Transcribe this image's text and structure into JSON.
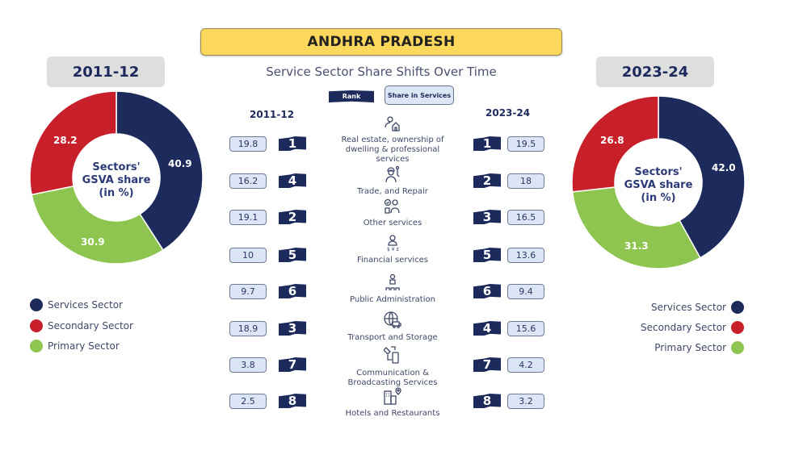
{
  "header": {
    "title": "ANDHRA PRADESH",
    "subtitle": "Service Sector Share Shifts Over Time",
    "legend_rank": "Rank",
    "legend_share": "Share in Services"
  },
  "left_panel": {
    "year": "2011-12",
    "center_label": [
      "Sectors'",
      "GSVA share",
      "(in %)"
    ],
    "slices": [
      {
        "name": "Services Sector",
        "value": 40.9,
        "label": "40.9",
        "color": "#1d2a5c"
      },
      {
        "name": "Primary Sector",
        "value": 30.9,
        "label": "30.9",
        "color": "#8dc550"
      },
      {
        "name": "Secondary Sector",
        "value": 28.2,
        "label": "28.2",
        "color": "#c8202a"
      }
    ],
    "legend": [
      {
        "label": "Services Sector",
        "color": "#1d2a5c"
      },
      {
        "label": "Secondary Sector",
        "color": "#c8202a"
      },
      {
        "label": "Primary Sector",
        "color": "#8dc550"
      }
    ]
  },
  "right_panel": {
    "year": "2023-24",
    "center_label": [
      "Sectors'",
      "GSVA share",
      "(in %)"
    ],
    "slices": [
      {
        "name": "Services Sector",
        "value": 42.0,
        "label": "42.0",
        "color": "#1d2a5c"
      },
      {
        "name": "Primary Sector",
        "value": 31.3,
        "label": "31.3",
        "color": "#8dc550"
      },
      {
        "name": "Secondary Sector",
        "value": 26.8,
        "label": "26.8",
        "color": "#c8202a"
      }
    ],
    "legend": [
      {
        "label": "Services Sector",
        "color": "#1d2a5c"
      },
      {
        "label": "Secondary Sector",
        "color": "#c8202a"
      },
      {
        "label": "Primary Sector",
        "color": "#8dc550"
      }
    ]
  },
  "table": {
    "col_left": "2011-12",
    "col_right": "2023-24",
    "rows": [
      {
        "category": "Real estate, ownership of dwelling & professional services",
        "lines": [
          "Real estate, ownership of",
          "dwelling & professional",
          "services"
        ],
        "icon": "person-house-icon",
        "share_2011": "19.8",
        "rank_2011": "1",
        "rank_2023": "1",
        "share_2023": "19.5"
      },
      {
        "category": "Trade, and Repair",
        "lines": [
          "Trade, and Repair"
        ],
        "icon": "worker-wrench-icon",
        "share_2011": "16.2",
        "rank_2011": "4",
        "rank_2023": "2",
        "share_2023": "18"
      },
      {
        "category": "Other services",
        "lines": [
          "Other services"
        ],
        "icon": "service-person-icon",
        "share_2011": "19.1",
        "rank_2011": "2",
        "rank_2023": "3",
        "share_2023": "16.5"
      },
      {
        "category": "Financial services",
        "lines": [
          "Financial services"
        ],
        "icon": "finance-person-icon",
        "share_2011": "10",
        "rank_2011": "5",
        "rank_2023": "5",
        "share_2023": "13.6"
      },
      {
        "category": "Public Administration",
        "lines": [
          "Public Administration"
        ],
        "icon": "administration-icon",
        "share_2011": "9.7",
        "rank_2011": "6",
        "rank_2023": "6",
        "share_2023": "9.4"
      },
      {
        "category": "Transport and Storage",
        "lines": [
          "Transport and Storage"
        ],
        "icon": "globe-truck-icon",
        "share_2011": "18.9",
        "rank_2011": "3",
        "rank_2023": "4",
        "share_2023": "15.6"
      },
      {
        "category": "Communication & Broadcasting Services",
        "lines": [
          "Communication &",
          "Broadcasting Services"
        ],
        "icon": "satellite-phone-icon",
        "share_2011": "3.8",
        "rank_2011": "7",
        "rank_2023": "7",
        "share_2023": "4.2"
      },
      {
        "category": "Hotels and Restaurants",
        "lines": [
          "Hotels and Restaurants"
        ],
        "icon": "hotel-location-icon",
        "share_2011": "2.5",
        "rank_2011": "8",
        "rank_2023": "8",
        "share_2023": "3.2"
      }
    ]
  },
  "chart_data": [
    {
      "type": "pie",
      "title": "Sectors' GSVA share (in %) — 2011-12",
      "categories": [
        "Services Sector",
        "Primary Sector",
        "Secondary Sector"
      ],
      "values": [
        40.9,
        30.9,
        28.2
      ],
      "colors": [
        "#1d2a5c",
        "#8dc550",
        "#c8202a"
      ],
      "donut": true,
      "legend_position": "below-left"
    },
    {
      "type": "pie",
      "title": "Sectors' GSVA share (in %) — 2023-24",
      "categories": [
        "Services Sector",
        "Primary Sector",
        "Secondary Sector"
      ],
      "values": [
        42.0,
        31.3,
        26.8
      ],
      "colors": [
        "#1d2a5c",
        "#8dc550",
        "#c8202a"
      ],
      "donut": true,
      "legend_position": "below-right"
    },
    {
      "type": "table",
      "title": "Service Sector Share Shifts Over Time",
      "columns": [
        "Category",
        "Share 2011-12",
        "Rank 2011-12",
        "Rank 2023-24",
        "Share 2023-24"
      ],
      "rows": [
        [
          "Real estate, ownership of dwelling & professional services",
          19.8,
          1,
          1,
          19.5
        ],
        [
          "Trade, and Repair",
          16.2,
          4,
          2,
          18
        ],
        [
          "Other services",
          19.1,
          2,
          3,
          16.5
        ],
        [
          "Financial services",
          10,
          5,
          5,
          13.6
        ],
        [
          "Public Administration",
          9.7,
          6,
          6,
          9.4
        ],
        [
          "Transport and Storage",
          18.9,
          3,
          4,
          15.6
        ],
        [
          "Communication & Broadcasting Services",
          3.8,
          7,
          7,
          4.2
        ],
        [
          "Hotels and Restaurants",
          2.5,
          8,
          8,
          3.2
        ]
      ]
    }
  ]
}
